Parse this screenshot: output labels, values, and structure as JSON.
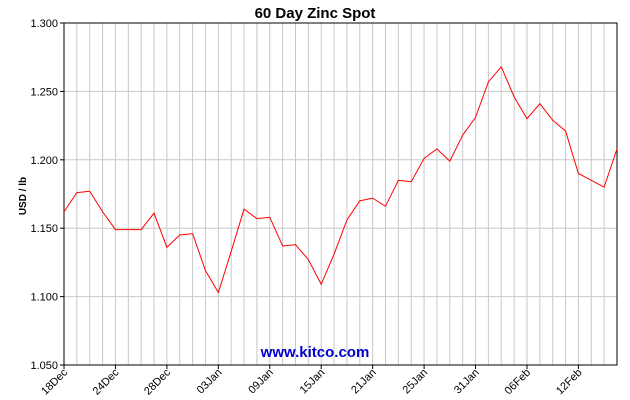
{
  "chart_data": {
    "type": "line",
    "title": "60 Day Zinc Spot",
    "xlabel": "",
    "ylabel": "USD / lb",
    "ylim": [
      1.05,
      1.3
    ],
    "yticks": [
      "1.050",
      "1.100",
      "1.150",
      "1.200",
      "1.250",
      "1.300"
    ],
    "xtick_labels": [
      "18Dec",
      "24Dec",
      "28Dec",
      "03Jan",
      "09Jan",
      "15Jan",
      "21Jan",
      "25Jan",
      "31Jan",
      "06Feb",
      "12Feb"
    ],
    "xtick_index": [
      0,
      4,
      8,
      12,
      16,
      20,
      24,
      28,
      32,
      36,
      40
    ],
    "grid": true,
    "legend": "none",
    "series": [
      {
        "color": "#ff0000",
        "values": [
          1.162,
          1.176,
          1.177,
          1.162,
          1.149,
          1.149,
          1.149,
          1.161,
          1.136,
          1.145,
          1.146,
          1.119,
          1.103,
          1.133,
          1.164,
          1.157,
          1.158,
          1.137,
          1.138,
          1.127,
          1.109,
          1.131,
          1.156,
          1.17,
          1.172,
          1.166,
          1.185,
          1.184,
          1.201,
          1.208,
          1.199,
          1.218,
          1.231,
          1.257,
          1.268,
          1.246,
          1.23,
          1.241,
          1.229,
          1.221,
          1.19,
          1.185,
          1.18,
          1.208
        ]
      }
    ]
  },
  "watermark": {
    "text": "www.kitco.com",
    "color": "#0000cc"
  }
}
